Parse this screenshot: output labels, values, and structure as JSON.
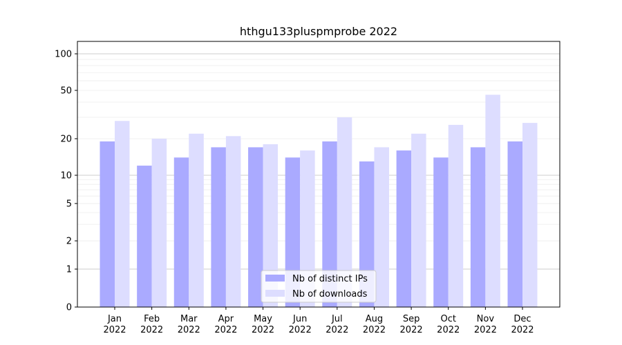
{
  "chart_data": {
    "type": "bar",
    "title": "hthgu133pluspmprobe 2022",
    "xlabel": "",
    "ylabel": "",
    "y_scale": "symlog",
    "ylim": [
      0,
      120
    ],
    "y_ticks": [
      0,
      1,
      2,
      5,
      10,
      20,
      50,
      100
    ],
    "y_tick_labels": [
      "0",
      "1",
      "2",
      "5",
      "10",
      "20",
      "50",
      "100"
    ],
    "grid": true,
    "legend_position": "bottom-center",
    "categories": [
      [
        "Jan",
        "2022"
      ],
      [
        "Feb",
        "2022"
      ],
      [
        "Mar",
        "2022"
      ],
      [
        "Apr",
        "2022"
      ],
      [
        "May",
        "2022"
      ],
      [
        "Jun",
        "2022"
      ],
      [
        "Jul",
        "2022"
      ],
      [
        "Aug",
        "2022"
      ],
      [
        "Sep",
        "2022"
      ],
      [
        "Oct",
        "2022"
      ],
      [
        "Nov",
        "2022"
      ],
      [
        "Dec",
        "2022"
      ]
    ],
    "series": [
      {
        "name": "Nb of distinct IPs",
        "color": "#aaaaff",
        "values": [
          19,
          12,
          14,
          17,
          17,
          14,
          19,
          13,
          16,
          14,
          17,
          19
        ]
      },
      {
        "name": "Nb of downloads",
        "color": "#ddddff",
        "values": [
          28,
          20,
          22,
          21,
          18,
          16,
          30,
          17,
          22,
          26,
          46,
          27
        ]
      }
    ]
  }
}
